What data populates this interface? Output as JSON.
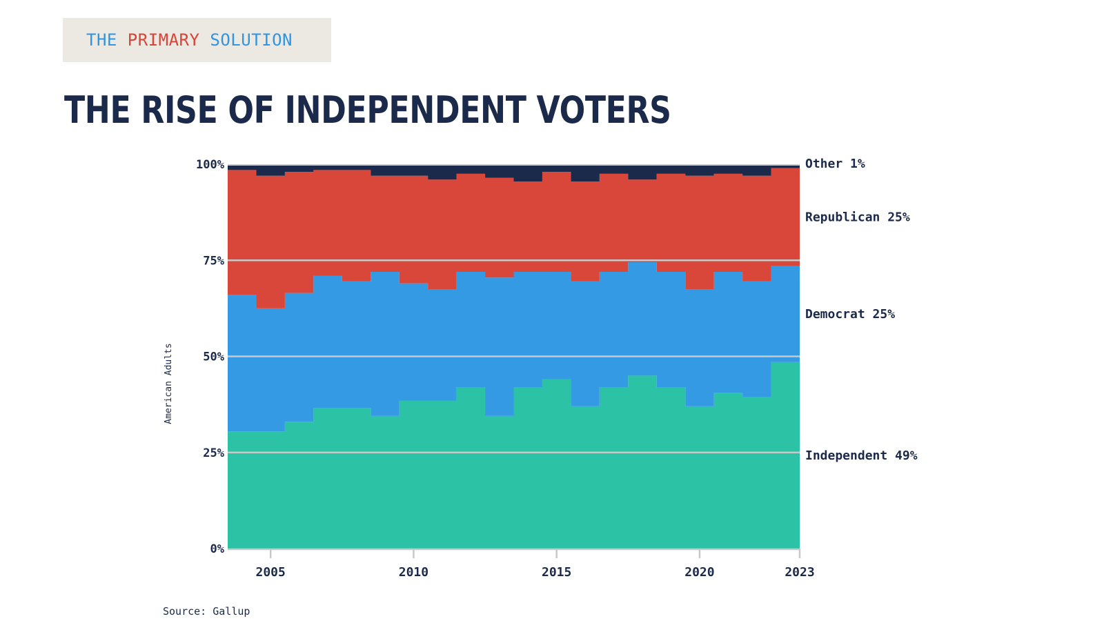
{
  "badge": {
    "parts": [
      {
        "text": "THE ",
        "color": "#2f95e0"
      },
      {
        "text": "PRIMARY",
        "color": "#d94437"
      },
      {
        "text": " SOLUTION",
        "color": "#2f95e0"
      }
    ]
  },
  "title": "THE RISE OF INDEPENDENT VOTERS",
  "source": "Source: Gallup",
  "chart_data": {
    "type": "area",
    "stacked": true,
    "stepped": true,
    "ylabel": "American Adults",
    "xlabel": "",
    "ylim": [
      0,
      100
    ],
    "yticks": [
      "0%",
      "25%",
      "50%",
      "75%",
      "100%"
    ],
    "xticks": [
      "2005",
      "2010",
      "2015",
      "2020",
      "2023"
    ],
    "x": [
      2004,
      2005,
      2006,
      2007,
      2008,
      2009,
      2010,
      2011,
      2012,
      2013,
      2014,
      2015,
      2016,
      2017,
      2018,
      2019,
      2020,
      2021,
      2022,
      2023
    ],
    "grid": true,
    "series": [
      {
        "name": "Independent",
        "end_label": "Independent 49%",
        "color": "#2bc2a5",
        "values": [
          30.5,
          30.5,
          33,
          36.5,
          36.5,
          34.5,
          38.5,
          38.5,
          42,
          34.5,
          42,
          44,
          37,
          42,
          45,
          42,
          37,
          40.5,
          39.5,
          48.5
        ]
      },
      {
        "name": "Democrat",
        "end_label": "Democrat 25%",
        "color": "#349ae4",
        "values": [
          35.5,
          32,
          33.5,
          34.5,
          33,
          37.5,
          30.5,
          29,
          30,
          36,
          30,
          28,
          32.5,
          30,
          29.5,
          30,
          30.5,
          31.5,
          30,
          25
        ]
      },
      {
        "name": "Republican",
        "end_label": "Republican 25%",
        "color": "#d9473a",
        "values": [
          32.5,
          34.5,
          31.5,
          27.5,
          29,
          25,
          28,
          28.5,
          25.5,
          26,
          23.5,
          26,
          26,
          25.5,
          21.5,
          25.5,
          29.5,
          25.5,
          27.5,
          25.5
        ]
      },
      {
        "name": "Other",
        "end_label": "Other 1%",
        "color": "#1b2a4a",
        "values": [
          1.5,
          3,
          2,
          1.5,
          1.5,
          3,
          3,
          4,
          2.5,
          3.5,
          4.5,
          2,
          4.5,
          2.5,
          4,
          2.5,
          3,
          2.5,
          3,
          1
        ]
      }
    ]
  }
}
